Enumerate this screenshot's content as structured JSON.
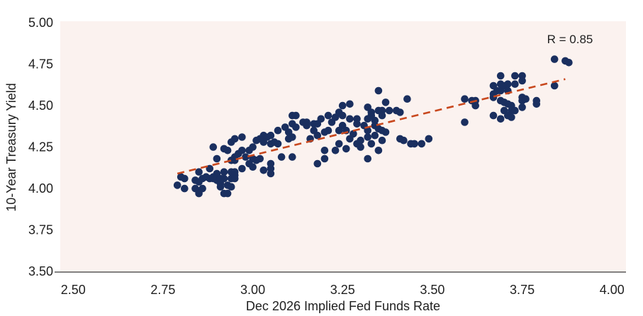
{
  "chart_data": {
    "type": "scatter",
    "title": "",
    "xlabel": "Dec 2026 Implied Fed Funds Rate",
    "ylabel": "10-Year Treasury Yield",
    "annotation": "R = 0.85",
    "correlation": 0.85,
    "x_ticks": [
      2.5,
      2.75,
      3.0,
      3.25,
      3.5,
      3.75,
      4.0
    ],
    "y_ticks": [
      5.0,
      4.75,
      4.5,
      4.25,
      4.0,
      3.75,
      3.5
    ],
    "xlim": [
      2.464,
      4.039
    ],
    "ylim": [
      3.496,
      5.009
    ],
    "grid": false,
    "legend": false,
    "colors": {
      "point": "#1a2f5f",
      "trend_line": "#c8481e",
      "plot_background": "#fbf2ef",
      "page_background": "#ffffff",
      "axis_line": "#595959",
      "text": "#1f1f1f"
    },
    "trend_line": {
      "style": "dashed",
      "x1": 2.79,
      "y1": 4.09,
      "x2": 3.87,
      "y2": 4.66
    },
    "points": [
      [
        2.8,
        4.07
      ],
      [
        2.79,
        4.02
      ],
      [
        2.81,
        4.0
      ],
      [
        2.81,
        4.06
      ],
      [
        2.84,
        4.05
      ],
      [
        2.84,
        4.0
      ],
      [
        2.85,
        3.98
      ],
      [
        2.85,
        3.97
      ],
      [
        2.85,
        4.04
      ],
      [
        2.86,
        4.06
      ],
      [
        2.88,
        4.06
      ],
      [
        2.89,
        4.06
      ],
      [
        2.9,
        4.05
      ],
      [
        2.91,
        4.03
      ],
      [
        2.93,
        4.02
      ],
      [
        2.94,
        4.06
      ],
      [
        2.95,
        4.06
      ],
      [
        2.85,
        4.1
      ],
      [
        2.86,
        4.0
      ],
      [
        2.88,
        4.12
      ],
      [
        2.87,
        4.07
      ],
      [
        2.9,
        4.09
      ],
      [
        2.92,
        4.1
      ],
      [
        2.94,
        4.1
      ],
      [
        2.95,
        4.08
      ],
      [
        2.89,
        4.25
      ],
      [
        2.9,
        4.18
      ],
      [
        2.92,
        4.24
      ],
      [
        2.93,
        4.23
      ],
      [
        2.94,
        4.17
      ],
      [
        2.95,
        4.17
      ],
      [
        2.94,
        4.28
      ],
      [
        2.95,
        4.3
      ],
      [
        2.91,
        4.01
      ],
      [
        2.92,
        4.06
      ],
      [
        2.92,
        3.97
      ],
      [
        2.93,
        3.97
      ],
      [
        2.94,
        4.01
      ],
      [
        2.89,
        4.07
      ],
      [
        2.91,
        4.06
      ],
      [
        2.96,
        4.21
      ],
      [
        2.95,
        4.19
      ],
      [
        2.97,
        4.12
      ],
      [
        2.95,
        4.1
      ],
      [
        2.97,
        4.23
      ],
      [
        2.98,
        4.19
      ],
      [
        3.0,
        4.18
      ],
      [
        2.99,
        4.23
      ],
      [
        3.0,
        4.25
      ],
      [
        3.01,
        4.29
      ],
      [
        2.97,
        4.31
      ],
      [
        3.01,
        4.17
      ],
      [
        3.02,
        4.18
      ],
      [
        2.99,
        4.15
      ],
      [
        3.0,
        4.13
      ],
      [
        3.03,
        4.11
      ],
      [
        3.05,
        4.12
      ],
      [
        3.05,
        4.09
      ],
      [
        3.05,
        4.15
      ],
      [
        3.05,
        4.32
      ],
      [
        3.04,
        4.31
      ],
      [
        3.03,
        4.32
      ],
      [
        3.02,
        4.3
      ],
      [
        3.03,
        4.28
      ],
      [
        3.05,
        4.27
      ],
      [
        3.06,
        4.28
      ],
      [
        3.07,
        4.27
      ],
      [
        3.07,
        4.35
      ],
      [
        3.08,
        4.19
      ],
      [
        3.11,
        4.19
      ],
      [
        3.1,
        4.34
      ],
      [
        3.11,
        4.31
      ],
      [
        3.1,
        4.3
      ],
      [
        3.11,
        4.44
      ],
      [
        3.12,
        4.44
      ],
      [
        3.11,
        4.39
      ],
      [
        3.12,
        4.37
      ],
      [
        3.14,
        4.4
      ],
      [
        3.15,
        4.38
      ],
      [
        3.09,
        4.37
      ],
      [
        3.15,
        4.4
      ],
      [
        3.17,
        4.39
      ],
      [
        3.18,
        4.39
      ],
      [
        3.19,
        4.42
      ],
      [
        3.21,
        4.44
      ],
      [
        3.22,
        4.4
      ],
      [
        3.23,
        4.43
      ],
      [
        3.24,
        4.46
      ],
      [
        3.25,
        4.44
      ],
      [
        3.25,
        4.5
      ],
      [
        3.27,
        4.51
      ],
      [
        3.29,
        4.42
      ],
      [
        3.29,
        4.39
      ],
      [
        3.31,
        4.38
      ],
      [
        3.32,
        4.42
      ],
      [
        3.32,
        4.49
      ],
      [
        3.33,
        4.44
      ],
      [
        3.34,
        4.41
      ],
      [
        3.34,
        4.38
      ],
      [
        3.35,
        4.59
      ],
      [
        3.36,
        4.47
      ],
      [
        3.37,
        4.52
      ],
      [
        3.38,
        4.47
      ],
      [
        3.4,
        4.47
      ],
      [
        3.41,
        4.46
      ],
      [
        3.43,
        4.54
      ],
      [
        3.35,
        4.47
      ],
      [
        3.33,
        4.46
      ],
      [
        3.27,
        4.42
      ],
      [
        3.25,
        4.38
      ],
      [
        3.17,
        4.35
      ],
      [
        3.16,
        4.3
      ],
      [
        3.18,
        4.32
      ],
      [
        3.2,
        4.34
      ],
      [
        3.21,
        4.35
      ],
      [
        3.24,
        4.35
      ],
      [
        3.26,
        4.35
      ],
      [
        3.27,
        4.3
      ],
      [
        3.24,
        4.27
      ],
      [
        3.26,
        4.24
      ],
      [
        3.23,
        4.23
      ],
      [
        3.2,
        4.23
      ],
      [
        3.2,
        4.18
      ],
      [
        3.18,
        4.15
      ],
      [
        3.29,
        4.27
      ],
      [
        3.3,
        4.25
      ],
      [
        3.3,
        4.29
      ],
      [
        3.32,
        4.31
      ],
      [
        3.32,
        4.35
      ],
      [
        3.35,
        4.36
      ],
      [
        3.36,
        4.35
      ],
      [
        3.37,
        4.34
      ],
      [
        3.36,
        4.29
      ],
      [
        3.33,
        4.27
      ],
      [
        3.35,
        4.23
      ],
      [
        3.32,
        4.18
      ],
      [
        3.41,
        4.3
      ],
      [
        3.42,
        4.29
      ],
      [
        3.44,
        4.27
      ],
      [
        3.45,
        4.27
      ],
      [
        3.49,
        4.3
      ],
      [
        3.28,
        4.33
      ],
      [
        3.34,
        4.32
      ],
      [
        3.47,
        4.27
      ],
      [
        3.59,
        4.4
      ],
      [
        3.59,
        4.54
      ],
      [
        3.61,
        4.53
      ],
      [
        3.62,
        4.53
      ],
      [
        3.62,
        4.5
      ],
      [
        3.67,
        4.55
      ],
      [
        3.67,
        4.62
      ],
      [
        3.67,
        4.57
      ],
      [
        3.68,
        4.59
      ],
      [
        3.69,
        4.68
      ],
      [
        3.69,
        4.63
      ],
      [
        3.69,
        4.59
      ],
      [
        3.7,
        4.62
      ],
      [
        3.71,
        4.63
      ],
      [
        3.71,
        4.59
      ],
      [
        3.73,
        4.68
      ],
      [
        3.75,
        4.68
      ],
      [
        3.75,
        4.65
      ],
      [
        3.73,
        4.63
      ],
      [
        3.67,
        4.44
      ],
      [
        3.69,
        4.53
      ],
      [
        3.7,
        4.52
      ],
      [
        3.71,
        4.51
      ],
      [
        3.72,
        4.5
      ],
      [
        3.75,
        4.55
      ],
      [
        3.75,
        4.53
      ],
      [
        3.76,
        4.54
      ],
      [
        3.79,
        4.53
      ],
      [
        3.79,
        4.51
      ],
      [
        3.72,
        4.47
      ],
      [
        3.73,
        4.47
      ],
      [
        3.7,
        4.47
      ],
      [
        3.71,
        4.44
      ],
      [
        3.69,
        4.42
      ],
      [
        3.72,
        4.43
      ],
      [
        3.84,
        4.62
      ],
      [
        3.84,
        4.78
      ],
      [
        3.87,
        4.77
      ],
      [
        3.88,
        4.76
      ],
      [
        3.75,
        4.49
      ],
      [
        3.36,
        4.44
      ]
    ]
  }
}
